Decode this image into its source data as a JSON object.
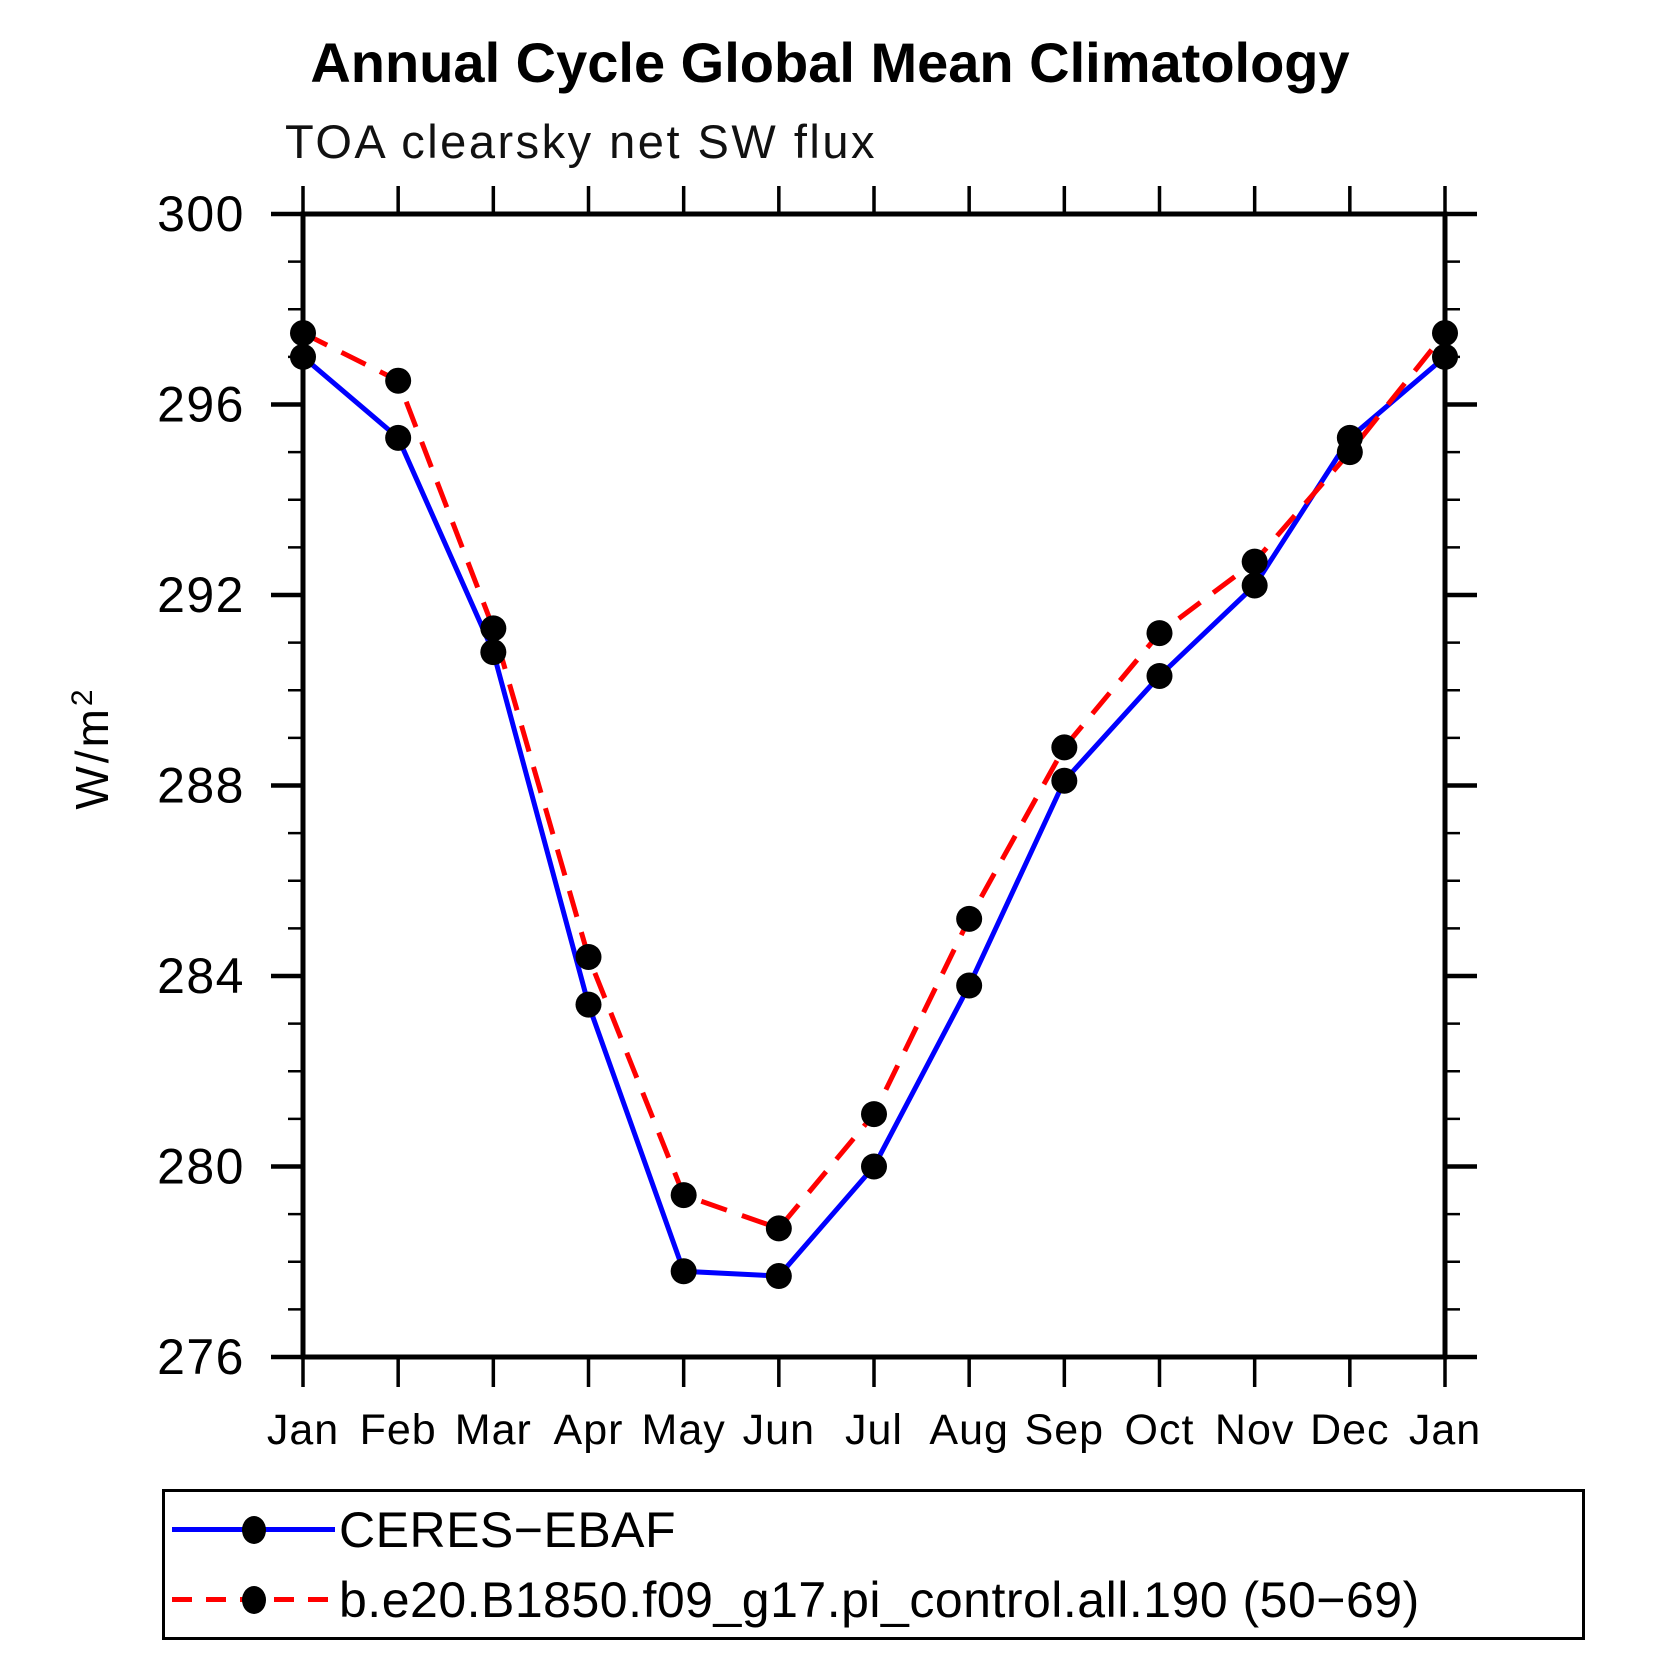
{
  "header": {
    "title": "Annual Cycle Global Mean Climatology",
    "subtitle": "TOA clearsky net SW flux"
  },
  "chart_data": {
    "type": "line",
    "title": "Annual Cycle Global Mean Climatology",
    "subtitle": "TOA clearsky net SW flux",
    "xlabel": "",
    "ylabel": "W/m²",
    "categories": [
      "Jan",
      "Feb",
      "Mar",
      "Apr",
      "May",
      "Jun",
      "Jul",
      "Aug",
      "Sep",
      "Oct",
      "Nov",
      "Dec",
      "Jan"
    ],
    "ylim": [
      276,
      300
    ],
    "yticks_major": [
      276,
      280,
      284,
      288,
      292,
      296,
      300
    ],
    "ytick_minor_step": 1,
    "grid": false,
    "legend_position": "bottom-left",
    "axis_color": "#000000",
    "marker_color": "#000000",
    "series": [
      {
        "name": "CERES−EBAF",
        "line_color": "#0000ff",
        "line_style": "solid",
        "marker": "filled-circle",
        "values": [
          297.0,
          295.3,
          290.8,
          283.4,
          277.8,
          277.7,
          280.0,
          283.8,
          288.1,
          290.3,
          292.2,
          295.3,
          297.0
        ]
      },
      {
        "name": "b.e20.B1850.f09_g17.pi_control.all.190 (50−69)",
        "line_color": "#ff0000",
        "line_style": "dashed",
        "marker": "filled-circle",
        "values": [
          297.5,
          296.5,
          291.3,
          284.4,
          279.4,
          278.7,
          281.1,
          285.2,
          288.8,
          291.2,
          292.7,
          295.0,
          297.5
        ]
      }
    ]
  }
}
